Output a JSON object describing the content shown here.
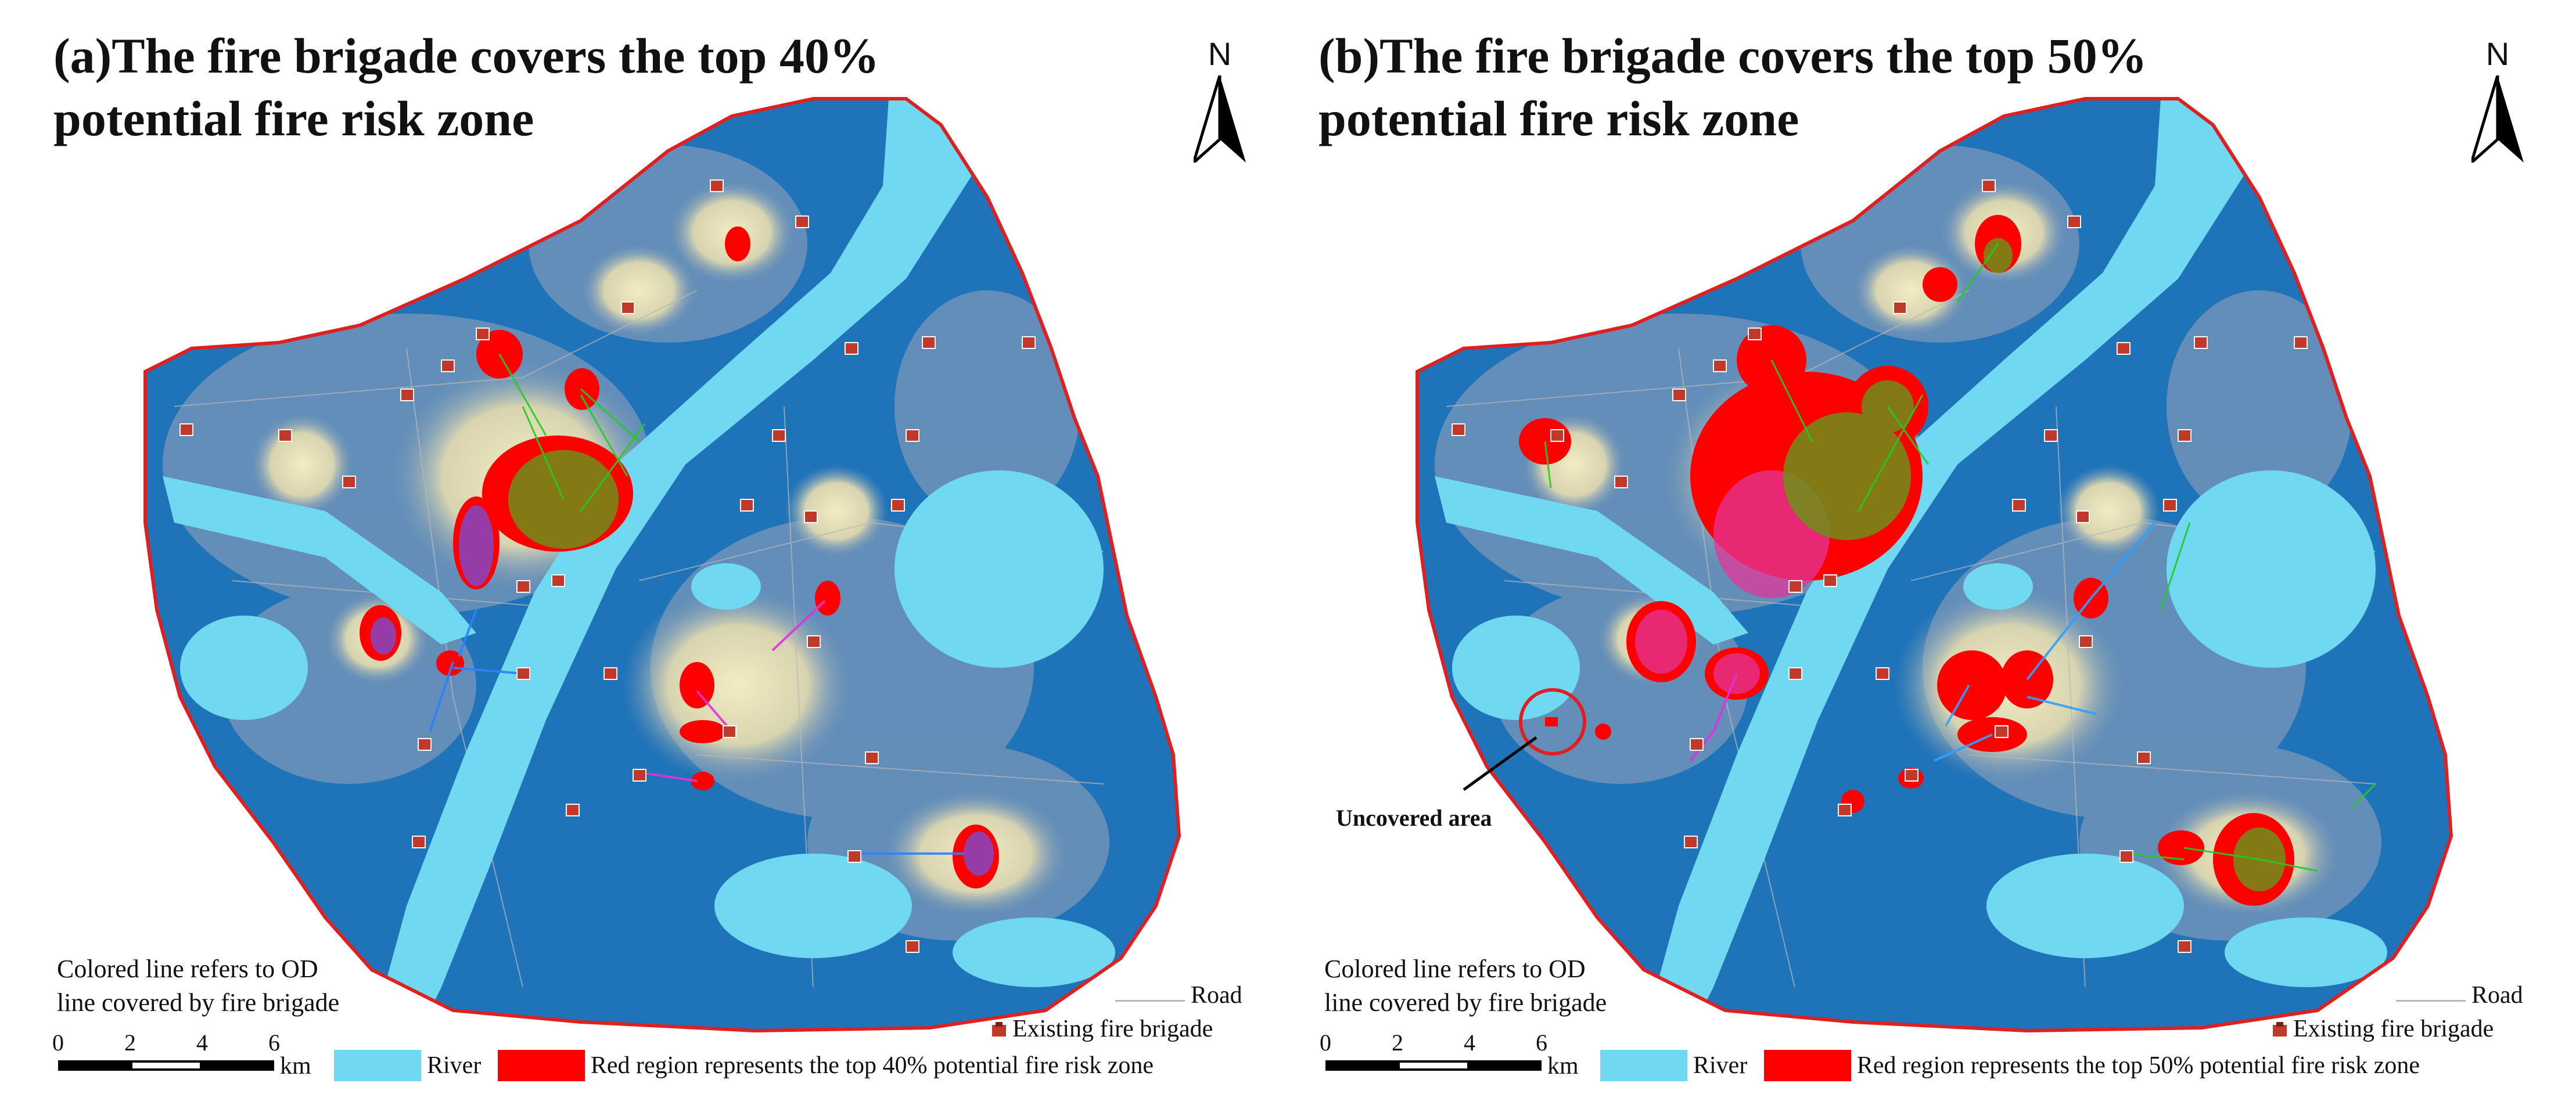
{
  "panels": [
    {
      "id": "a",
      "title_line1": "(a)The fire brigade covers the top 40%",
      "title_line2": "potential fire risk zone",
      "red_label": "Red region represents the top 40% potential fire risk zone"
    },
    {
      "id": "b",
      "title_line1": "(b)The fire brigade covers the top 50%",
      "title_line2": "potential fire risk zone",
      "red_label": "Red region represents the top 50% potential fire risk zone",
      "annotation": "Uncovered area"
    }
  ],
  "north_label": "N",
  "od_note_line1": "Colored line refers to OD",
  "od_note_line2": "line covered by fire brigade",
  "scale": {
    "ticks": [
      "0",
      "2",
      "4",
      "6"
    ],
    "unit": "km"
  },
  "legend": {
    "road": "Road",
    "brigade": "Existing fire brigade",
    "river": "River"
  },
  "colors": {
    "base_blue": "#1f73b8",
    "mid_blue": "#6f93b8",
    "river": "#70d8f0",
    "risk_yellow": "#efe6b6",
    "risk_red": "#ff0000",
    "boundary": "#e02020",
    "od_green": "#22cc22",
    "od_magenta": "#dd33dd",
    "od_blue": "#2f80ff"
  },
  "icons": [
    "north-arrow-icon",
    "fire-brigade-icon"
  ]
}
